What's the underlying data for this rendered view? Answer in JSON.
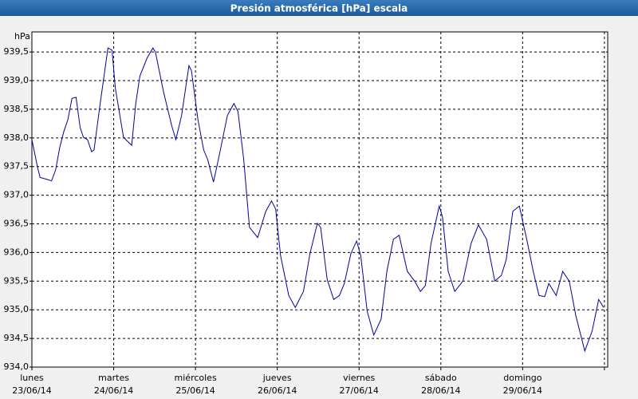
{
  "chart_data": {
    "type": "line",
    "title": "Presión atmosférica [hPa] escala",
    "y_label": "hPa",
    "xlim": [
      0,
      7.04
    ],
    "ylim": [
      934,
      939.85
    ],
    "grid": true,
    "xticks": [
      {
        "value": 0,
        "label": "lunes",
        "sublabel": "23/06/14"
      },
      {
        "value": 1,
        "label": "martes",
        "sublabel": "24/06/14"
      },
      {
        "value": 2,
        "label": "miércoles",
        "sublabel": "25/06/14"
      },
      {
        "value": 3,
        "label": "jueves",
        "sublabel": "26/06/14"
      },
      {
        "value": 4,
        "label": "viernes",
        "sublabel": "27/06/14"
      },
      {
        "value": 5,
        "label": "sábado",
        "sublabel": "28/06/14"
      },
      {
        "value": 6,
        "label": "domingo",
        "sublabel": "29/06/14"
      },
      {
        "value": 7,
        "label": null
      }
    ],
    "yticks": [
      {
        "value": 934.0,
        "label": "934,0"
      },
      {
        "value": 934.5,
        "label": "934,5"
      },
      {
        "value": 935.0,
        "label": "935,0"
      },
      {
        "value": 935.5,
        "label": "935,5"
      },
      {
        "value": 936.0,
        "label": "936,0"
      },
      {
        "value": 936.5,
        "label": "936,5"
      },
      {
        "value": 937.0,
        "label": "937,0"
      },
      {
        "value": 937.5,
        "label": "937,5"
      },
      {
        "value": 938.0,
        "label": "938,0"
      },
      {
        "value": 938.5,
        "label": "938,5"
      },
      {
        "value": 939.0,
        "label": "939,0"
      },
      {
        "value": 939.5,
        "label": "939,5"
      }
    ],
    "x": [
      0.0,
      0.07,
      0.1,
      0.2,
      0.24,
      0.29,
      0.34,
      0.39,
      0.44,
      0.49,
      0.54,
      0.59,
      0.63,
      0.68,
      0.73,
      0.76,
      0.83,
      0.93,
      0.98,
      1.02,
      1.12,
      1.22,
      1.27,
      1.32,
      1.41,
      1.48,
      1.51,
      1.61,
      1.71,
      1.76,
      1.83,
      1.92,
      1.95,
      2.03,
      2.1,
      2.15,
      2.22,
      2.29,
      2.39,
      2.47,
      2.52,
      2.59,
      2.66,
      2.76,
      2.86,
      2.93,
      2.98,
      3.04,
      3.14,
      3.22,
      3.32,
      3.4,
      3.49,
      3.53,
      3.61,
      3.69,
      3.76,
      3.82,
      3.9,
      3.97,
      4.02,
      4.1,
      4.18,
      4.27,
      4.34,
      4.42,
      4.49,
      4.59,
      4.68,
      4.75,
      4.81,
      4.88,
      4.98,
      5.02,
      5.09,
      5.17,
      5.27,
      5.37,
      5.46,
      5.56,
      5.66,
      5.74,
      5.8,
      5.88,
      5.96,
      6.05,
      6.13,
      6.2,
      6.27,
      6.32,
      6.41,
      6.49,
      6.57,
      6.65,
      6.76,
      6.85,
      6.93,
      6.99
    ],
    "series": [
      {
        "name": "Presión",
        "color": "#0000a0",
        "values": [
          937.97,
          937.48,
          937.31,
          937.27,
          937.25,
          937.44,
          937.83,
          938.11,
          938.32,
          938.69,
          938.71,
          938.18,
          938.01,
          937.97,
          937.76,
          937.79,
          938.55,
          939.57,
          939.53,
          938.87,
          938.01,
          937.87,
          938.6,
          939.08,
          939.4,
          939.57,
          939.5,
          938.8,
          938.21,
          937.97,
          938.39,
          939.26,
          939.18,
          938.32,
          937.79,
          937.62,
          937.23,
          937.69,
          938.39,
          938.6,
          938.46,
          937.62,
          936.44,
          936.26,
          936.72,
          936.9,
          936.76,
          935.95,
          935.25,
          935.04,
          935.32,
          935.98,
          936.51,
          936.44,
          935.53,
          935.18,
          935.25,
          935.46,
          935.98,
          936.2,
          935.95,
          934.97,
          934.56,
          934.84,
          935.67,
          936.23,
          936.3,
          935.67,
          935.5,
          935.32,
          935.42,
          936.16,
          936.81,
          936.62,
          935.67,
          935.32,
          935.5,
          936.16,
          936.48,
          936.23,
          935.5,
          935.6,
          935.88,
          936.72,
          936.81,
          936.23,
          935.67,
          935.25,
          935.23,
          935.46,
          935.25,
          935.67,
          935.5,
          934.9,
          934.28,
          934.63,
          935.18,
          935.04
        ]
      }
    ]
  }
}
